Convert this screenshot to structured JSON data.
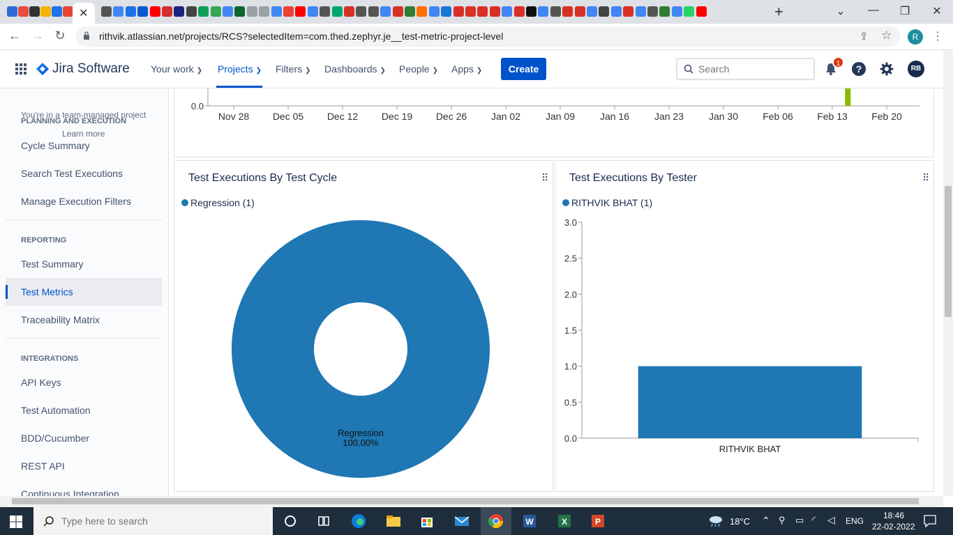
{
  "browser": {
    "active_tab_close": "✕",
    "new_tab": "+",
    "url": "rithvik.atlassian.net/projects/RCS?selectedItem=com.thed.zephyr.je__test-metric-project-level",
    "profile_initial": "R",
    "favicon_colors": [
      "#2d6bd8",
      "#e84c3d",
      "#333333",
      "#f4b400",
      "#1a73e8",
      "#ea4335",
      "#555555",
      "#4285f4",
      "#1a73e8",
      "#0b57d0",
      "#ff0000",
      "#d32f2f",
      "#1a237e",
      "#444444",
      "#0f9d58",
      "#34a853",
      "#4285f4",
      "#0d652d",
      "#9aa0a6",
      "#9aa0a6",
      "#4285f4",
      "#ea4335",
      "#ff0000",
      "#4285f4",
      "#555555",
      "#00a86b",
      "#d93025",
      "#555555",
      "#555555",
      "#4285f4",
      "#d93025",
      "#2e7d32",
      "#ff6f00",
      "#4285f4",
      "#1976d2",
      "#d93025",
      "#d93025",
      "#d93025",
      "#d93025",
      "#4285f4",
      "#d93025",
      "#111111",
      "#4285f4",
      "#555555",
      "#d93025",
      "#d93025",
      "#4285f4",
      "#444444",
      "#4285f4",
      "#d93025",
      "#4285f4",
      "#555555",
      "#2e7d32",
      "#4285f4",
      "#25d366",
      "#ff0000"
    ]
  },
  "header": {
    "product": "Jira Software",
    "nav": [
      {
        "label": "Your work"
      },
      {
        "label": "Projects"
      },
      {
        "label": "Filters"
      },
      {
        "label": "Dashboards"
      },
      {
        "label": "People"
      },
      {
        "label": "Apps"
      }
    ],
    "create_label": "Create",
    "search_placeholder": "Search",
    "notification_count": "1",
    "help_glyph": "?",
    "avatar_initials": "RB"
  },
  "sidebar": {
    "team_note": "You're in a team-managed project",
    "planning_heading": "PLANNING AND EXECUTION",
    "learn_more": "Learn more",
    "planning_items": [
      {
        "label": "Cycle Summary"
      },
      {
        "label": "Search Test Executions"
      },
      {
        "label": "Manage Execution Filters"
      }
    ],
    "reporting_heading": "REPORTING",
    "reporting_items": [
      {
        "label": "Test Summary"
      },
      {
        "label": "Test Metrics"
      },
      {
        "label": "Traceability Matrix"
      }
    ],
    "integrations_heading": "INTEGRATIONS",
    "integration_items": [
      {
        "label": "API Keys"
      },
      {
        "label": "Test Automation"
      },
      {
        "label": "BDD/Cucumber"
      },
      {
        "label": "REST API"
      },
      {
        "label": "Continuous Integration"
      }
    ]
  },
  "chart_data": [
    {
      "type": "bar",
      "title": "",
      "x": [
        "Nov 28",
        "Dec 05",
        "Dec 12",
        "Dec 19",
        "Dec 26",
        "Jan 02",
        "Jan 09",
        "Jan 16",
        "Jan 23",
        "Jan 30",
        "Feb 06",
        "Feb 13",
        "Feb 20"
      ],
      "y_tick_visible": "0.0",
      "bar_color": "#8cb900",
      "bar_date": "Feb 15"
    },
    {
      "type": "pie",
      "title": "Test Executions By Test Cycle",
      "legend": "Regression (1)",
      "slices": [
        {
          "label": "Regression",
          "value": 1,
          "percent": "100.00%"
        }
      ],
      "color": "#1f77b4",
      "donut": true
    },
    {
      "type": "bar",
      "title": "Test Executions By Tester",
      "legend": "RITHVIK BHAT (1)",
      "categories": [
        "RITHVIK BHAT"
      ],
      "values": [
        1
      ],
      "ylim": [
        0,
        3
      ],
      "yticks": [
        "0.0",
        "0.5",
        "1.0",
        "1.5",
        "2.0",
        "2.5",
        "3.0"
      ],
      "color": "#1f77b4"
    }
  ],
  "taskbar": {
    "search_placeholder": "Type here to search",
    "weather": "18°C",
    "language": "ENG",
    "time": "18:46",
    "date": "22-02-2022"
  }
}
